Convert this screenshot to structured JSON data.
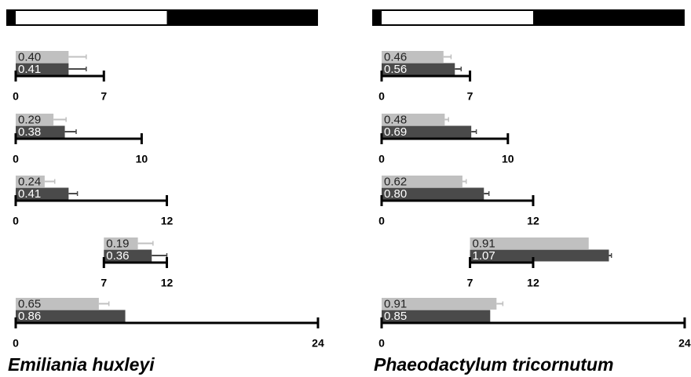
{
  "panels": [
    {
      "title": "Emiliania huxleyi",
      "rows": [
        {
          "xticks": [
            0,
            7
          ],
          "bars": [
            {
              "length": 4.2,
              "error": 1.4,
              "label": "0.40"
            },
            {
              "length": 4.2,
              "error": 1.4,
              "label": "0.41"
            }
          ]
        },
        {
          "xticks": [
            0,
            10
          ],
          "bars": [
            {
              "length": 3.0,
              "error": 1.0,
              "label": "0.29"
            },
            {
              "length": 3.9,
              "error": 0.9,
              "label": "0.38"
            }
          ]
        },
        {
          "xticks": [
            0,
            12
          ],
          "bars": [
            {
              "length": 2.3,
              "error": 0.8,
              "label": "0.24"
            },
            {
              "length": 4.2,
              "error": 0.7,
              "label": "0.41"
            }
          ]
        },
        {
          "xticks": [
            7,
            12
          ],
          "bars": [
            {
              "length": 9.7,
              "error": 1.2,
              "label": "0.19"
            },
            {
              "length": 10.8,
              "error": 1.2,
              "label": "0.36"
            }
          ]
        },
        {
          "xticks": [
            0,
            24
          ],
          "bars": [
            {
              "length": 6.6,
              "error": 0.8,
              "label": "0.65"
            },
            {
              "length": 8.7,
              "error": 0,
              "label": "0.86"
            }
          ]
        }
      ]
    },
    {
      "title": "Phaeodactylum tricornutum",
      "rows": [
        {
          "xticks": [
            0,
            7
          ],
          "bars": [
            {
              "length": 4.9,
              "error": 0.6,
              "label": "0.46"
            },
            {
              "length": 5.8,
              "error": 0.5,
              "label": "0.56"
            }
          ]
        },
        {
          "xticks": [
            0,
            10
          ],
          "bars": [
            {
              "length": 5.0,
              "error": 0.3,
              "label": "0.48"
            },
            {
              "length": 7.1,
              "error": 0.4,
              "label": "0.69"
            }
          ]
        },
        {
          "xticks": [
            0,
            12
          ],
          "bars": [
            {
              "length": 6.4,
              "error": 0.3,
              "label": "0.62"
            },
            {
              "length": 8.1,
              "error": 0.4,
              "label": "0.80"
            }
          ]
        },
        {
          "xticks": [
            7,
            12
          ],
          "bars": [
            {
              "length": 16.4,
              "error": 0,
              "label": "0.91"
            },
            {
              "length": 18.0,
              "error": 0.2,
              "label": "1.07"
            }
          ]
        },
        {
          "xticks": [
            0,
            24
          ],
          "bars": [
            {
              "length": 9.1,
              "error": 0.5,
              "label": "0.91"
            },
            {
              "length": 8.6,
              "error": 0,
              "label": "0.85"
            }
          ]
        }
      ]
    }
  ],
  "colors": [
    "#c0c0c0",
    "#4a4a4a"
  ]
}
